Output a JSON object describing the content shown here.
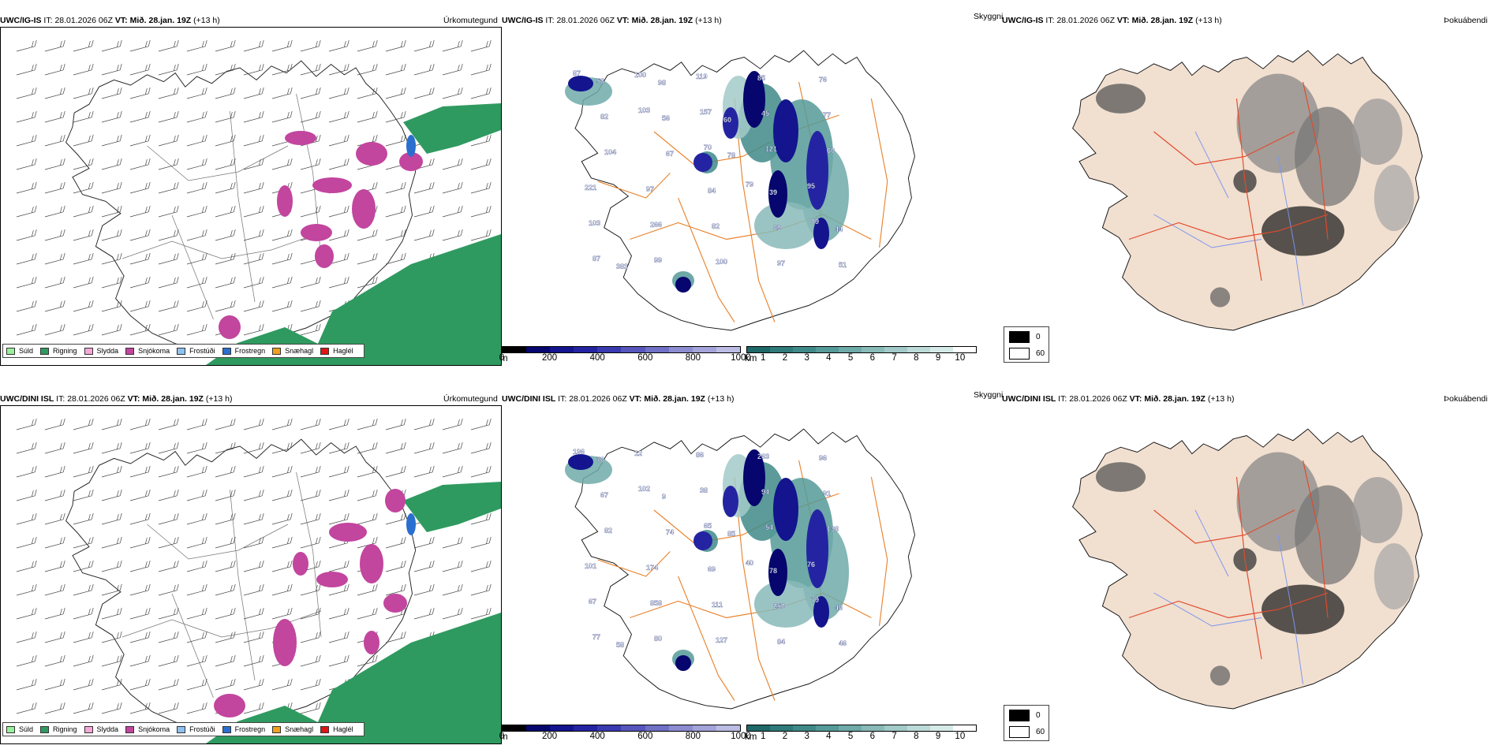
{
  "rows": [
    {
      "model": "UWC/IG-IS",
      "it_label": "IT:",
      "it_value": "28.01.2026 06Z",
      "vt_label": "VT:",
      "vt_value": "Mið. 28.jan. 19Z",
      "lead": "(+13 h)",
      "cloud_labels": [
        "87",
        "103",
        "70",
        "79",
        "89",
        "87",
        "100",
        "157",
        "121",
        "95",
        "103",
        "99",
        "119",
        "45",
        "60",
        "221",
        "266",
        "100",
        "85",
        "77",
        "104",
        "97",
        "82",
        "97",
        "76",
        "82",
        "67",
        "84",
        "69",
        "51",
        "58",
        "56",
        "78",
        "39",
        "44",
        "383",
        "98",
        "60"
      ]
    },
    {
      "model": "UWC/DINI ISL",
      "it_label": "IT:",
      "it_value": "28.01.2026 06Z",
      "vt_label": "VT:",
      "vt_value": "Mið. 28.jan. 19Z",
      "lead": "(+13 h)",
      "cloud_labels": [
        "196",
        "102",
        "65",
        "40",
        "79",
        "77",
        "12",
        "38",
        "54",
        "76",
        "67",
        "80",
        "86",
        "94",
        "138",
        "101",
        "858",
        "127",
        "263",
        "91",
        "82",
        "174",
        "111",
        "84",
        "96",
        "67",
        "74",
        "69",
        "250",
        "46",
        "76",
        "9",
        "85",
        "78",
        "46",
        "58"
      ]
    }
  ],
  "titles": {
    "precip": "Úrkomutegund",
    "cloud": "Skyggni",
    "fog": "Þokuábendi"
  },
  "precip_legend": [
    {
      "label": "Súld",
      "color": "#98f09a"
    },
    {
      "label": "Rigning",
      "color": "#2f9a60"
    },
    {
      "label": "Slydda",
      "color": "#f5a8d8"
    },
    {
      "label": "Snjókoma",
      "color": "#c2459e"
    },
    {
      "label": "Frostúði",
      "color": "#8ec1ef"
    },
    {
      "label": "Frostregn",
      "color": "#2a6fd0"
    },
    {
      "label": "Snæhagl",
      "color": "#f09f1e"
    },
    {
      "label": "Haglél",
      "color": "#e01515"
    }
  ],
  "cloudbase_bar": {
    "unit": "m",
    "ticks": [
      "0",
      "200",
      "400",
      "600",
      "800",
      "1000"
    ],
    "colors": [
      "#000000",
      "#06066e",
      "#13148e",
      "#2424a2",
      "#3a3ab0",
      "#5656bc",
      "#7070c6",
      "#8c8cd0",
      "#a4a4da",
      "#bcbce4"
    ]
  },
  "vis_bar": {
    "unit": "km",
    "ticks": [
      "1",
      "2",
      "3",
      "4",
      "5",
      "6",
      "7",
      "8",
      "9",
      "10"
    ],
    "colors": [
      "#1f6868",
      "#2f7a7a",
      "#3f8a88",
      "#559a98",
      "#6eaaa8",
      "#88bab8",
      "#a2cac8",
      "#bcdad8",
      "#d6eae8",
      "#ffffff"
    ]
  },
  "fog_legend": [
    {
      "label": "0",
      "color": "#000000"
    },
    {
      "label": "60",
      "color": "#ffffff"
    }
  ]
}
